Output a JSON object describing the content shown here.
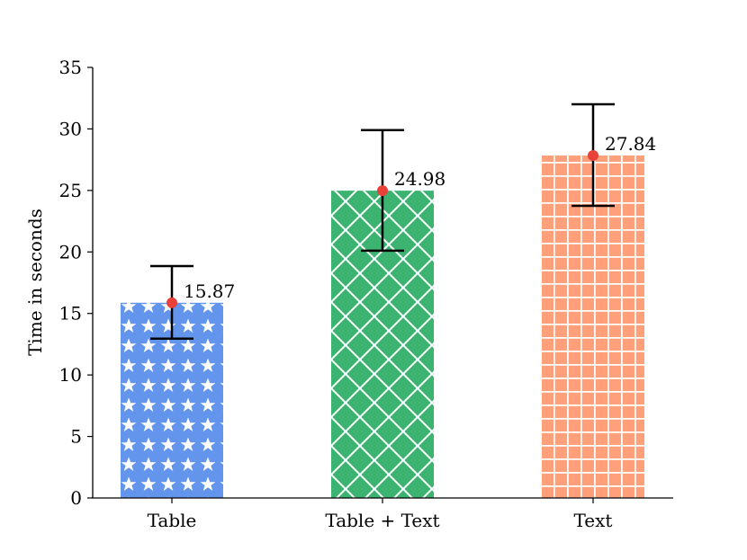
{
  "chart_data": {
    "type": "bar",
    "categories": [
      "Table",
      "Table + Text",
      "Text"
    ],
    "values": [
      15.87,
      24.98,
      27.84
    ],
    "error_low": [
      12.95,
      20.1,
      23.75
    ],
    "error_high": [
      18.85,
      29.9,
      32.0
    ],
    "data_labels": [
      "15.87",
      "24.98",
      "27.84"
    ],
    "ylabel": "Time in seconds",
    "xlabel": "",
    "ylim": [
      0,
      35
    ],
    "yticks": [
      0,
      5,
      10,
      15,
      20,
      25,
      30,
      35
    ],
    "ytick_labels": [
      "0",
      "5",
      "10",
      "15",
      "20",
      "25",
      "30",
      "35"
    ],
    "grid": false,
    "bar_colors": [
      "#6495ed",
      "#3cb371",
      "#ffa07a"
    ],
    "bar_patterns": [
      "stars",
      "diagonal-cross",
      "grid"
    ],
    "marker_color": "#e8413a",
    "error_color": "#000000"
  }
}
